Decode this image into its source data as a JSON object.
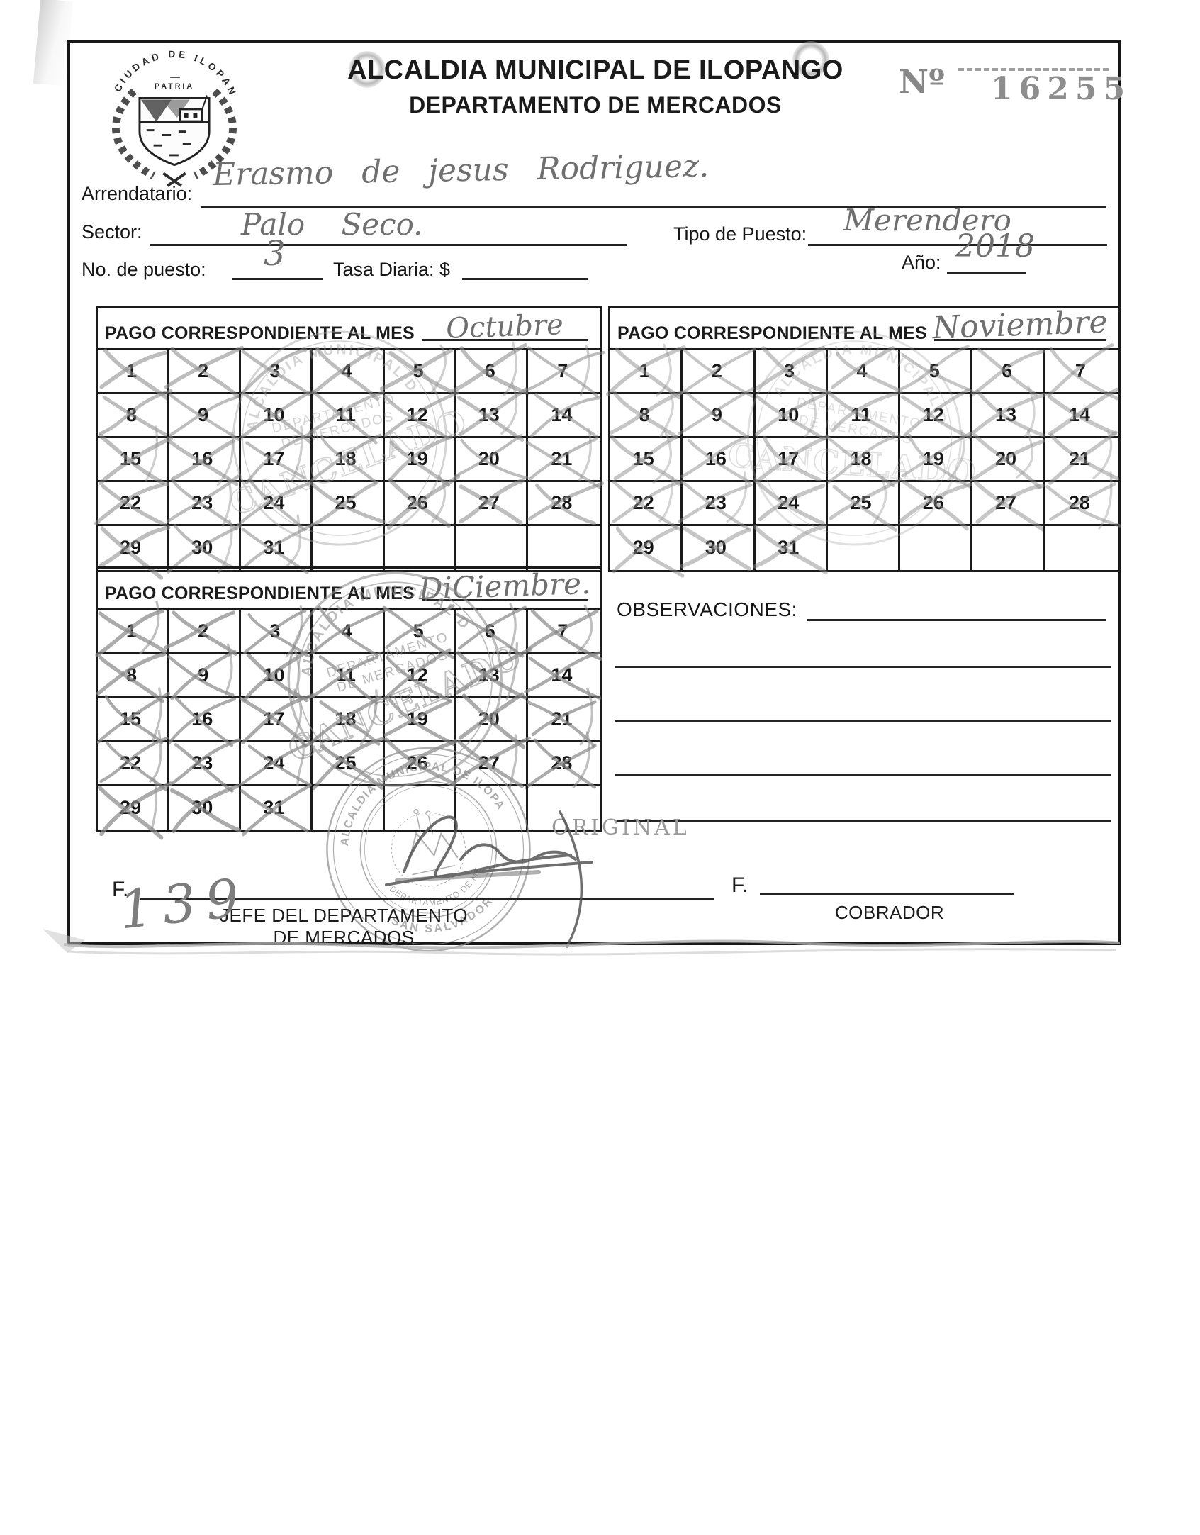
{
  "header": {
    "title_line1": "ALCALDIA MUNICIPAL DE ILOPANGO",
    "title_line2": "DEPARTAMENTO DE MERCADOS",
    "receipt_no_label": "Nº",
    "receipt_no": "16255",
    "logo": {
      "arc_text": "CIUDAD DE ILOPANGO",
      "motto": "PATRIA"
    }
  },
  "fields": {
    "arrendatario_label": "Arrendatario:",
    "arrendatario_value": "Erasmo de jesus Rodriguez.",
    "sector_label": "Sector:",
    "sector_value": "Palo Seco.",
    "tipo_puesto_label": "Tipo de Puesto:",
    "tipo_puesto_value": "Merendero",
    "no_puesto_label": "No. de puesto:",
    "no_puesto_value": "3",
    "tasa_label": "Tasa Diaria: $",
    "tasa_value": "",
    "anio_label": "Año:",
    "anio_value": "2018"
  },
  "calendar": {
    "header_label": "PAGO CORRESPONDIENTE AL MES",
    "columns": 7,
    "months": [
      {
        "name": "Octubre",
        "days_in_month": 31,
        "crossed_days": [
          1,
          2,
          3,
          4,
          5,
          6,
          7,
          8,
          9,
          10,
          11,
          12,
          13,
          14,
          15,
          16,
          17,
          18,
          19,
          20,
          21,
          22,
          23,
          24,
          25,
          26,
          27,
          28,
          29,
          30,
          31
        ]
      },
      {
        "name": "Noviembre",
        "days_in_month": 31,
        "crossed_days": [
          1,
          2,
          3,
          4,
          5,
          6,
          7,
          8,
          9,
          10,
          11,
          12,
          13,
          14,
          15,
          16,
          17,
          18,
          19,
          20,
          21,
          22,
          23,
          24,
          25,
          26,
          27,
          28,
          29,
          30,
          31
        ]
      },
      {
        "name": "DiCiembre.",
        "days_in_month": 31,
        "crossed_days": [
          1,
          2,
          3,
          4,
          5,
          6,
          7,
          8,
          9,
          10,
          11,
          12,
          13,
          14,
          15,
          16,
          17,
          18,
          19,
          20,
          21,
          22,
          23,
          24,
          25,
          26,
          27,
          28,
          29,
          30,
          31
        ]
      }
    ]
  },
  "observations": {
    "label": "OBSERVACIONES:",
    "value": ""
  },
  "watermark": {
    "original_label": "ORIGINAL"
  },
  "stamps": {
    "cancelado": {
      "ring_text": "ALCALDIA MUNICIPAL DE ILOPANGO",
      "line1": "DEPARTAMENTO",
      "line2": "DE MERCADOS",
      "big_text": "CANCELADO"
    },
    "seal": {
      "top_text": "ALCALDIA MUNICIPAL DE ILOPANGO",
      "inner_text": "DEPARTAMENTO DE MERCADOS",
      "bottom_text": "SAN SALVADOR"
    }
  },
  "footer": {
    "left_f_label": "F.",
    "left_role_line1": "JEFE DEL DEPARTAMENTO",
    "left_role_line2": "DE MERCADOS",
    "right_f_label": "F.",
    "right_role": "COBRADOR",
    "handwritten_number": "139"
  }
}
